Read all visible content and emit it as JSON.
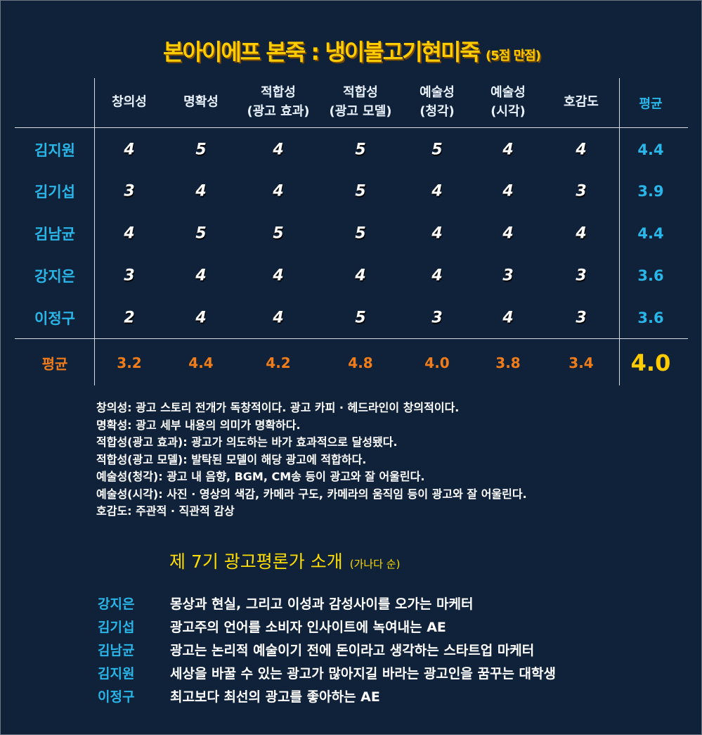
{
  "title": {
    "main": "본아이에프 본죽 : 냉이불고기현미죽",
    "note": "(5점 만점)"
  },
  "columns": [
    "창의성",
    "명확성",
    "적합성\n(광고 효과)",
    "적합성\n(광고 모델)",
    "예술성\n(청각)",
    "예술성\n(시각)",
    "호감도"
  ],
  "avg_header": "평균",
  "rows": [
    {
      "name": "김지원",
      "scores": [
        "4",
        "5",
        "4",
        "5",
        "5",
        "4",
        "4"
      ],
      "avg": "4.4"
    },
    {
      "name": "김기섭",
      "scores": [
        "3",
        "4",
        "4",
        "5",
        "4",
        "4",
        "3"
      ],
      "avg": "3.9"
    },
    {
      "name": "김남균",
      "scores": [
        "4",
        "5",
        "5",
        "5",
        "4",
        "4",
        "4"
      ],
      "avg": "4.4"
    },
    {
      "name": "강지은",
      "scores": [
        "3",
        "4",
        "4",
        "4",
        "4",
        "3",
        "3"
      ],
      "avg": "3.6"
    },
    {
      "name": "이정구",
      "scores": [
        "2",
        "4",
        "4",
        "5",
        "3",
        "4",
        "3"
      ],
      "avg": "3.6"
    }
  ],
  "avg_row": {
    "label": "평균",
    "values": [
      "3.2",
      "4.4",
      "4.2",
      "4.8",
      "4.0",
      "3.8",
      "3.4"
    ],
    "total": "4.0"
  },
  "definitions": [
    "창의성: 광고 스토리 전개가 독창적이다. 광고 카피 · 헤드라인이 창의적이다.",
    "명확성: 광고 세부 내용의 의미가 명확하다.",
    "적합성(광고 효과): 광고가 의도하는 바가 효과적으로 달성됐다.",
    "적합성(광고 모델): 발탁된 모델이 해당 광고에 적합하다.",
    "예술성(청각): 광고 내 음향, BGM, CM송 등이 광고와 잘 어울린다.",
    "예술성(시각): 사진 · 영상의 색감, 카메라 구도, 카메라의 움직임 등이 광고와 잘 어울린다.",
    "호감도: 주관적 · 직관적 감상"
  ],
  "critics_title": {
    "main": "제 7기 광고평론가 소개",
    "note": "(가나다 순)"
  },
  "critics": [
    {
      "name": "강지은",
      "desc": "몽상과 현실, 그리고 이성과 감성사이를 오가는 마케터"
    },
    {
      "name": "김기섭",
      "desc": "광고주의 언어를 소비자 인사이트에 녹여내는 AE"
    },
    {
      "name": "김남균",
      "desc": "광고는 논리적 예술이기 전에 돈이라고 생각하는 스타트업 마케터"
    },
    {
      "name": "김지원",
      "desc": "세상을 바꿀 수 있는 광고가 많아지길 바라는 광고인을 꿈꾸는 대학생"
    },
    {
      "name": "이정구",
      "desc": "최고보다 최선의 광고를 좋아하는 AE"
    }
  ],
  "colors": {
    "background": "#10223a",
    "name": "#29b6e8",
    "average": "#f07c1a",
    "title": "#ffcc00"
  }
}
